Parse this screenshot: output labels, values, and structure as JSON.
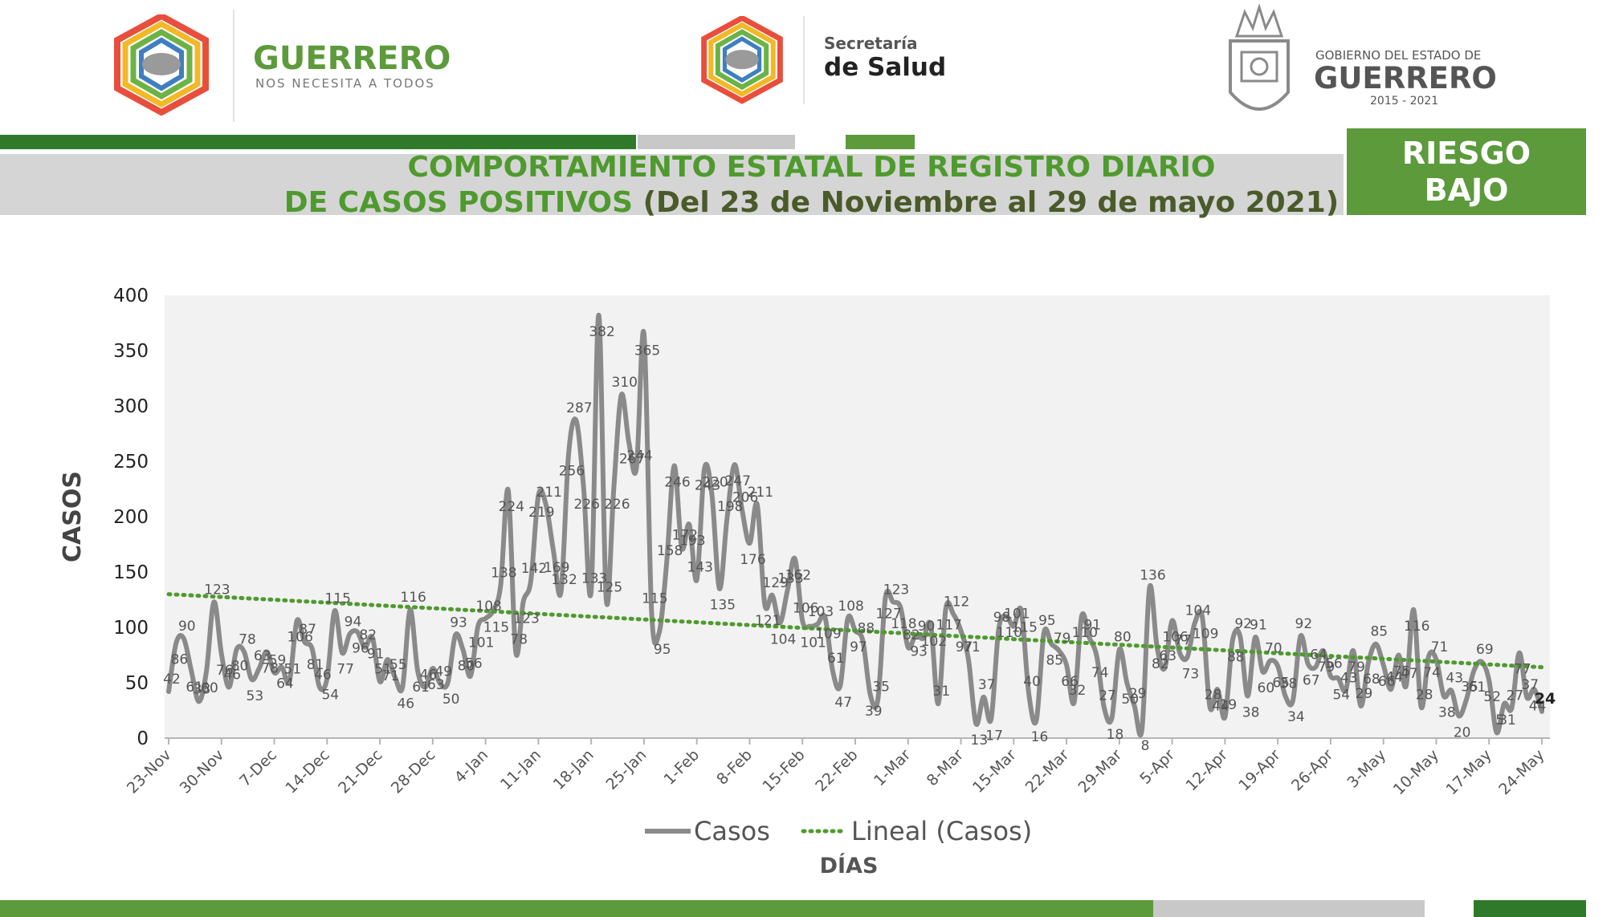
{
  "header": {
    "left_logo": {
      "title": "GUERRERO",
      "subtitle": "NOS NECESITA A TODOS"
    },
    "center_logo": {
      "line1": "Secretaría",
      "line2": "de Salud"
    },
    "right_logo": {
      "line1": "GOBIERNO DEL ESTADO DE",
      "line2": "GUERRERO",
      "line3": "2015 - 2021"
    }
  },
  "title": {
    "line1": "COMPORTAMIENTO ESTATAL DE REGISTRO DIARIO",
    "line2_bold": "DE CASOS POSITIVOS",
    "line2_rest": " (Del 23 de Noviembre al 29 de mayo 2021)"
  },
  "risk": {
    "line1": "RIESGO",
    "line2": "BAJO"
  },
  "colors": {
    "green": "#5c9a3b",
    "series": "#8a8a8a",
    "trend": "#4f9a2e",
    "plot_bg": "#f2f2f2",
    "band": "#d5d5d5"
  },
  "chart_data": {
    "type": "line",
    "title": "",
    "xlabel": "DÍAS",
    "ylabel": "CASOS",
    "ylim": [
      0,
      400
    ],
    "yticks": [
      0,
      50,
      100,
      150,
      200,
      250,
      300,
      350,
      400
    ],
    "xticks": [
      {
        "label": "23-Nov",
        "day": 0
      },
      {
        "label": "30-Nov",
        "day": 7
      },
      {
        "label": "7-Dec",
        "day": 14
      },
      {
        "label": "14-Dec",
        "day": 21
      },
      {
        "label": "21-Dec",
        "day": 28
      },
      {
        "label": "28-Dec",
        "day": 35
      },
      {
        "label": "4-Jan",
        "day": 42
      },
      {
        "label": "11-Jan",
        "day": 49
      },
      {
        "label": "18-Jan",
        "day": 56
      },
      {
        "label": "25-Jan",
        "day": 63
      },
      {
        "label": "1-Feb",
        "day": 70
      },
      {
        "label": "8-Feb",
        "day": 77
      },
      {
        "label": "15-Feb",
        "day": 84
      },
      {
        "label": "22-Feb",
        "day": 91
      },
      {
        "label": "1-Mar",
        "day": 98
      },
      {
        "label": "8-Mar",
        "day": 105
      },
      {
        "label": "15-Mar",
        "day": 112
      },
      {
        "label": "22-Mar",
        "day": 119
      },
      {
        "label": "29-Mar",
        "day": 126
      },
      {
        "label": "5-Apr",
        "day": 133
      },
      {
        "label": "12-Apr",
        "day": 140
      },
      {
        "label": "19-Apr",
        "day": 147
      },
      {
        "label": "26-Apr",
        "day": 154
      },
      {
        "label": "3-May",
        "day": 161
      },
      {
        "label": "10-May",
        "day": 168
      },
      {
        "label": "17-May",
        "day": 175
      },
      {
        "label": "24-May",
        "day": 182
      }
    ],
    "legend_position": "bottom",
    "series": [
      {
        "name": "Casos",
        "start_date": "23-Nov",
        "values": [
          42,
          86,
          90,
          61,
          33,
          60,
          123,
          76,
          46,
          80,
          78,
          53,
          63,
          78,
          59,
          64,
          51,
          106,
          87,
          81,
          46,
          54,
          115,
          77,
          94,
          96,
          82,
          91,
          51,
          71,
          55,
          46,
          116,
          61,
          46,
          63,
          49,
          50,
          93,
          80,
          56,
          101,
          108,
          115,
          138,
          224,
          78,
          123,
          142,
          219,
          211,
          169,
          132,
          256,
          287,
          226,
          133,
          382,
          125,
          226,
          310,
          267,
          244,
          365,
          115,
          95,
          158,
          246,
          172,
          193,
          143,
          243,
          220,
          135,
          198,
          247,
          206,
          176,
          211,
          121,
          129,
          104,
          133,
          162,
          106,
          101,
          103,
          109,
          61,
          47,
          108,
          97,
          88,
          39,
          35,
          127,
          123,
          118,
          82,
          93,
          90,
          102,
          31,
          117,
          112,
          97,
          71,
          13,
          37,
          17,
          98,
          110,
          101,
          115,
          40,
          16,
          95,
          85,
          79,
          66,
          32,
          110,
          91,
          74,
          27,
          18,
          80,
          50,
          29,
          8,
          136,
          82,
          63,
          106,
          77,
          73,
          104,
          109,
          28,
          44,
          19,
          88,
          92,
          38,
          91,
          60,
          70,
          65,
          38,
          34,
          92,
          67,
          64,
          79,
          56,
          54,
          43,
          79,
          29,
          68,
          85,
          66,
          44,
          75,
          47,
          116,
          28,
          74,
          71,
          38,
          43,
          20,
          35,
          61,
          69,
          52,
          5,
          31,
          27,
          77,
          37,
          44,
          24
        ],
        "point_labels_shown": true,
        "color": "#8a8a8a"
      },
      {
        "name": "Lineal (Casos)",
        "type": "trendline",
        "start": 130,
        "end": 64,
        "color": "#4f9a2e"
      }
    ]
  }
}
